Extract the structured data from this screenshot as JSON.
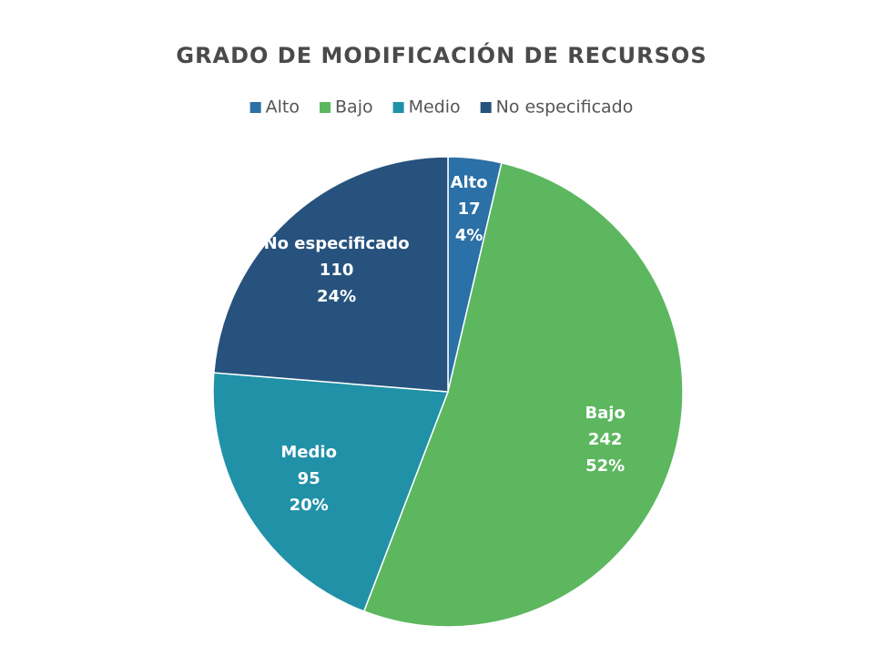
{
  "chart_data": {
    "type": "pie",
    "title": "GRADO DE MODIFICACIÓN DE RECURSOS",
    "categories": [
      "Alto",
      "Bajo",
      "Medio",
      "No especificado"
    ],
    "values": [
      17,
      242,
      95,
      110
    ],
    "percent_labels": [
      "4%",
      "52%",
      "20%",
      "24%"
    ],
    "colors": [
      "#2b70a6",
      "#5cb75f",
      "#2191a8",
      "#26527d"
    ],
    "legend": "top"
  }
}
